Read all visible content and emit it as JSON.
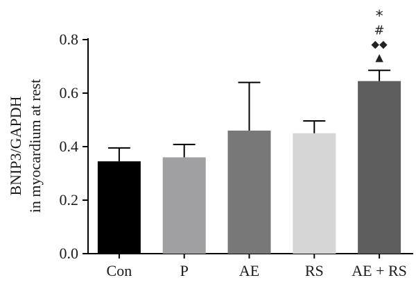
{
  "chart_data": {
    "type": "bar",
    "categories": [
      "Con",
      "P",
      "AE",
      "RS",
      "AE + RS"
    ],
    "values": [
      0.345,
      0.36,
      0.46,
      0.45,
      0.645
    ],
    "errors": [
      0.05,
      0.048,
      0.18,
      0.046,
      0.04
    ],
    "colors": [
      "#000000",
      "#a0a0a2",
      "#787878",
      "#d6d6d6",
      "#5e5e5e"
    ],
    "ylabel_lines": [
      "BNIP3/GAPDH",
      "in myocardium at rest"
    ],
    "ylim": [
      0,
      0.8
    ],
    "yticks": [
      "0.0",
      "0.2",
      "0.4",
      "0.6",
      "0.8"
    ],
    "annotations": [
      {
        "category": "AE + RS",
        "symbols": [
          "*",
          "#",
          "◆◆",
          "▲"
        ]
      }
    ],
    "grid": false
  }
}
